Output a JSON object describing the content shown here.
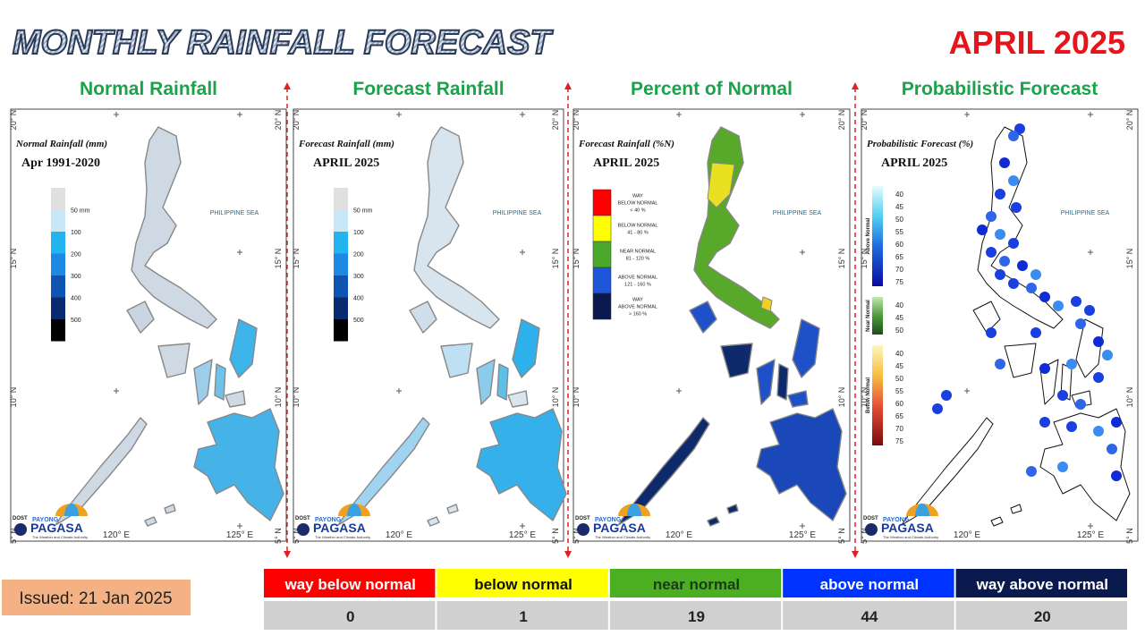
{
  "header": {
    "title": "MONTHLY RAINFALL FORECAST",
    "period": "APRIL 2025"
  },
  "panels": [
    {
      "title": "Normal Rainfall",
      "map_title": "Normal Rainfall (mm)",
      "map_subtitle": "Apr 1991-2020",
      "legend": [
        "50 mm",
        "100",
        "200",
        "300",
        "400",
        "500"
      ]
    },
    {
      "title": "Forecast Rainfall",
      "map_title": "Forecast Rainfall (mm)",
      "map_subtitle": "APRIL 2025",
      "legend": [
        "50 mm",
        "100",
        "200",
        "300",
        "400",
        "500"
      ]
    },
    {
      "title": "Percent of Normal",
      "map_title": "Forecast Rainfall (%N)",
      "map_subtitle": "APRIL 2025",
      "legend": [
        [
          "WAY",
          "BELOW NORMAL",
          "< 40 %"
        ],
        [
          "BELOW NORMAL",
          "41 - 80 %"
        ],
        [
          "NEAR NORMAL",
          "81 - 120 %"
        ],
        [
          "ABOVE NORMAL",
          "121 - 160 %"
        ],
        [
          "WAY",
          "ABOVE NORMAL",
          "> 160 %"
        ]
      ]
    },
    {
      "title": "Probabilistic Forecast",
      "map_title": "Probabilistic Forecast (%)",
      "map_subtitle": "APRIL 2025",
      "legend_groups": [
        {
          "name": "Above Normal",
          "labels": [
            40,
            45,
            50,
            55,
            60,
            65,
            70,
            75
          ]
        },
        {
          "name": "Near Normal",
          "labels": [
            40,
            45,
            50
          ]
        },
        {
          "name": "Below Normal",
          "labels": [
            40,
            45,
            50,
            55,
            60,
            65,
            70,
            75
          ]
        }
      ]
    }
  ],
  "map_labels": {
    "sea": "PHILIPPINE SEA",
    "lat": [
      "20° N",
      "15° N",
      "10° N",
      "5° N"
    ],
    "lon": [
      "120° E",
      "125° E"
    ]
  },
  "logo": {
    "dost": "DOST",
    "payong": "PAYONG",
    "pagasa": "PAGASA",
    "tagline": "The Weather and Climate Authority"
  },
  "summary": {
    "categories": [
      "way below normal",
      "below normal",
      "near normal",
      "above normal",
      "way above normal"
    ],
    "counts": [
      0,
      1,
      19,
      44,
      20
    ]
  },
  "issued": "Issued: 21 Jan 2025"
}
